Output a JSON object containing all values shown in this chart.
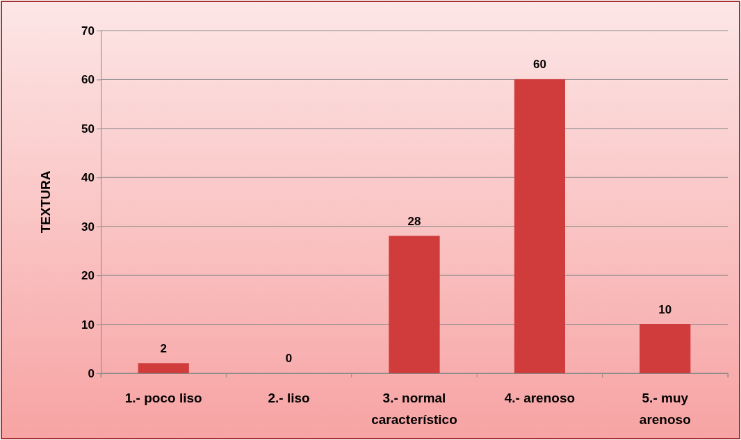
{
  "chart_data": {
    "type": "bar",
    "ylabel": "TEXTURA",
    "categories": [
      "1.- poco liso",
      "2.- liso",
      "3.- normal característico",
      "4.- arenoso",
      "5.- muy arenoso"
    ],
    "values": [
      2,
      0,
      28,
      60,
      10
    ],
    "color": "#d03c3c",
    "ylim": [
      0,
      70
    ],
    "yticks": [
      0,
      10,
      20,
      30,
      40,
      50,
      60,
      70
    ],
    "grid": "y",
    "data_labels": true
  }
}
